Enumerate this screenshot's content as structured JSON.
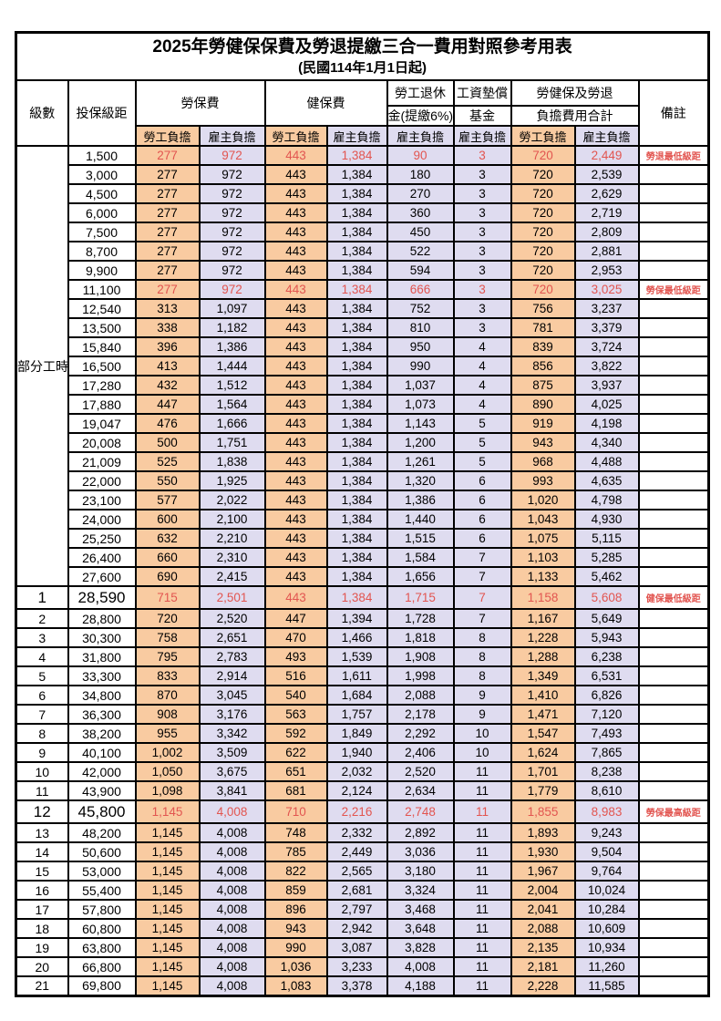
{
  "title": "2025年勞健保保費及勞退提繳三合一費用對照參考用表",
  "subtitle": "(民國114年1月1日起)",
  "header": {
    "level": "級數",
    "bracket": "投保級距",
    "labor_fee": "勞保費",
    "health_fee": "健保費",
    "pension_line1": "勞工退休",
    "pension_line2": "金(提繳6%)",
    "wage_fund_line1": "工資墊償",
    "wage_fund_line2": "基金",
    "total_line1": "勞健保及勞退",
    "total_line2": "負擔費用合計",
    "remark": "備註",
    "employee_share": "勞工負擔",
    "employer_share": "雇主負擔"
  },
  "part_time_label": "部分工時",
  "colors": {
    "employee_bg": "#F9CBA1",
    "employer_bg": "#DFDCF0",
    "highlight_text": "#E25550",
    "border": "#000000"
  },
  "rows": [
    {
      "level": null,
      "bracket": "1,500",
      "values": [
        "277",
        "972",
        "443",
        "1,384",
        "90",
        "3",
        "720",
        "2,449"
      ],
      "remark": "勞退最低級距",
      "highlight": true,
      "large": false
    },
    {
      "level": null,
      "bracket": "3,000",
      "values": [
        "277",
        "972",
        "443",
        "1,384",
        "180",
        "3",
        "720",
        "2,539"
      ],
      "remark": "",
      "highlight": false,
      "large": false
    },
    {
      "level": null,
      "bracket": "4,500",
      "values": [
        "277",
        "972",
        "443",
        "1,384",
        "270",
        "3",
        "720",
        "2,629"
      ],
      "remark": "",
      "highlight": false,
      "large": false
    },
    {
      "level": null,
      "bracket": "6,000",
      "values": [
        "277",
        "972",
        "443",
        "1,384",
        "360",
        "3",
        "720",
        "2,719"
      ],
      "remark": "",
      "highlight": false,
      "large": false
    },
    {
      "level": null,
      "bracket": "7,500",
      "values": [
        "277",
        "972",
        "443",
        "1,384",
        "450",
        "3",
        "720",
        "2,809"
      ],
      "remark": "",
      "highlight": false,
      "large": false
    },
    {
      "level": null,
      "bracket": "8,700",
      "values": [
        "277",
        "972",
        "443",
        "1,384",
        "522",
        "3",
        "720",
        "2,881"
      ],
      "remark": "",
      "highlight": false,
      "large": false
    },
    {
      "level": null,
      "bracket": "9,900",
      "values": [
        "277",
        "972",
        "443",
        "1,384",
        "594",
        "3",
        "720",
        "2,953"
      ],
      "remark": "",
      "highlight": false,
      "large": false
    },
    {
      "level": null,
      "bracket": "11,100",
      "values": [
        "277",
        "972",
        "443",
        "1,384",
        "666",
        "3",
        "720",
        "3,025"
      ],
      "remark": "勞保最低級距",
      "highlight": true,
      "large": false
    },
    {
      "level": null,
      "bracket": "12,540",
      "values": [
        "313",
        "1,097",
        "443",
        "1,384",
        "752",
        "3",
        "756",
        "3,237"
      ],
      "remark": "",
      "highlight": false,
      "large": false
    },
    {
      "level": null,
      "bracket": "13,500",
      "values": [
        "338",
        "1,182",
        "443",
        "1,384",
        "810",
        "3",
        "781",
        "3,379"
      ],
      "remark": "",
      "highlight": false,
      "large": false
    },
    {
      "level": null,
      "bracket": "15,840",
      "values": [
        "396",
        "1,386",
        "443",
        "1,384",
        "950",
        "4",
        "839",
        "3,724"
      ],
      "remark": "",
      "highlight": false,
      "large": false
    },
    {
      "level": null,
      "bracket": "16,500",
      "values": [
        "413",
        "1,444",
        "443",
        "1,384",
        "990",
        "4",
        "856",
        "3,822"
      ],
      "remark": "",
      "highlight": false,
      "large": false
    },
    {
      "level": null,
      "bracket": "17,280",
      "values": [
        "432",
        "1,512",
        "443",
        "1,384",
        "1,037",
        "4",
        "875",
        "3,937"
      ],
      "remark": "",
      "highlight": false,
      "large": false
    },
    {
      "level": null,
      "bracket": "17,880",
      "values": [
        "447",
        "1,564",
        "443",
        "1,384",
        "1,073",
        "4",
        "890",
        "4,025"
      ],
      "remark": "",
      "highlight": false,
      "large": false
    },
    {
      "level": null,
      "bracket": "19,047",
      "values": [
        "476",
        "1,666",
        "443",
        "1,384",
        "1,143",
        "5",
        "919",
        "4,198"
      ],
      "remark": "",
      "highlight": false,
      "large": false
    },
    {
      "level": null,
      "bracket": "20,008",
      "values": [
        "500",
        "1,751",
        "443",
        "1,384",
        "1,200",
        "5",
        "943",
        "4,340"
      ],
      "remark": "",
      "highlight": false,
      "large": false
    },
    {
      "level": null,
      "bracket": "21,009",
      "values": [
        "525",
        "1,838",
        "443",
        "1,384",
        "1,261",
        "5",
        "968",
        "4,488"
      ],
      "remark": "",
      "highlight": false,
      "large": false
    },
    {
      "level": null,
      "bracket": "22,000",
      "values": [
        "550",
        "1,925",
        "443",
        "1,384",
        "1,320",
        "6",
        "993",
        "4,635"
      ],
      "remark": "",
      "highlight": false,
      "large": false
    },
    {
      "level": null,
      "bracket": "23,100",
      "values": [
        "577",
        "2,022",
        "443",
        "1,384",
        "1,386",
        "6",
        "1,020",
        "4,798"
      ],
      "remark": "",
      "highlight": false,
      "large": false
    },
    {
      "level": null,
      "bracket": "24,000",
      "values": [
        "600",
        "2,100",
        "443",
        "1,384",
        "1,440",
        "6",
        "1,043",
        "4,930"
      ],
      "remark": "",
      "highlight": false,
      "large": false
    },
    {
      "level": null,
      "bracket": "25,250",
      "values": [
        "632",
        "2,210",
        "443",
        "1,384",
        "1,515",
        "6",
        "1,075",
        "5,115"
      ],
      "remark": "",
      "highlight": false,
      "large": false
    },
    {
      "level": null,
      "bracket": "26,400",
      "values": [
        "660",
        "2,310",
        "443",
        "1,384",
        "1,584",
        "7",
        "1,103",
        "5,285"
      ],
      "remark": "",
      "highlight": false,
      "large": false
    },
    {
      "level": null,
      "bracket": "27,600",
      "values": [
        "690",
        "2,415",
        "443",
        "1,384",
        "1,656",
        "7",
        "1,133",
        "5,462"
      ],
      "remark": "",
      "highlight": false,
      "large": false
    },
    {
      "level": "1",
      "bracket": "28,590",
      "values": [
        "715",
        "2,501",
        "443",
        "1,384",
        "1,715",
        "7",
        "1,158",
        "5,608"
      ],
      "remark": "健保最低級距",
      "highlight": true,
      "large": true
    },
    {
      "level": "2",
      "bracket": "28,800",
      "values": [
        "720",
        "2,520",
        "447",
        "1,394",
        "1,728",
        "7",
        "1,167",
        "5,649"
      ],
      "remark": "",
      "highlight": false,
      "large": false
    },
    {
      "level": "3",
      "bracket": "30,300",
      "values": [
        "758",
        "2,651",
        "470",
        "1,466",
        "1,818",
        "8",
        "1,228",
        "5,943"
      ],
      "remark": "",
      "highlight": false,
      "large": false
    },
    {
      "level": "4",
      "bracket": "31,800",
      "values": [
        "795",
        "2,783",
        "493",
        "1,539",
        "1,908",
        "8",
        "1,288",
        "6,238"
      ],
      "remark": "",
      "highlight": false,
      "large": false
    },
    {
      "level": "5",
      "bracket": "33,300",
      "values": [
        "833",
        "2,914",
        "516",
        "1,611",
        "1,998",
        "8",
        "1,349",
        "6,531"
      ],
      "remark": "",
      "highlight": false,
      "large": false
    },
    {
      "level": "6",
      "bracket": "34,800",
      "values": [
        "870",
        "3,045",
        "540",
        "1,684",
        "2,088",
        "9",
        "1,410",
        "6,826"
      ],
      "remark": "",
      "highlight": false,
      "large": false
    },
    {
      "level": "7",
      "bracket": "36,300",
      "values": [
        "908",
        "3,176",
        "563",
        "1,757",
        "2,178",
        "9",
        "1,471",
        "7,120"
      ],
      "remark": "",
      "highlight": false,
      "large": false
    },
    {
      "level": "8",
      "bracket": "38,200",
      "values": [
        "955",
        "3,342",
        "592",
        "1,849",
        "2,292",
        "10",
        "1,547",
        "7,493"
      ],
      "remark": "",
      "highlight": false,
      "large": false
    },
    {
      "level": "9",
      "bracket": "40,100",
      "values": [
        "1,002",
        "3,509",
        "622",
        "1,940",
        "2,406",
        "10",
        "1,624",
        "7,865"
      ],
      "remark": "",
      "highlight": false,
      "large": false
    },
    {
      "level": "10",
      "bracket": "42,000",
      "values": [
        "1,050",
        "3,675",
        "651",
        "2,032",
        "2,520",
        "11",
        "1,701",
        "8,238"
      ],
      "remark": "",
      "highlight": false,
      "large": false
    },
    {
      "level": "11",
      "bracket": "43,900",
      "values": [
        "1,098",
        "3,841",
        "681",
        "2,124",
        "2,634",
        "11",
        "1,779",
        "8,610"
      ],
      "remark": "",
      "highlight": false,
      "large": false
    },
    {
      "level": "12",
      "bracket": "45,800",
      "values": [
        "1,145",
        "4,008",
        "710",
        "2,216",
        "2,748",
        "11",
        "1,855",
        "8,983"
      ],
      "remark": "勞保最高級距",
      "highlight": true,
      "large": true
    },
    {
      "level": "13",
      "bracket": "48,200",
      "values": [
        "1,145",
        "4,008",
        "748",
        "2,332",
        "2,892",
        "11",
        "1,893",
        "9,243"
      ],
      "remark": "",
      "highlight": false,
      "large": false
    },
    {
      "level": "14",
      "bracket": "50,600",
      "values": [
        "1,145",
        "4,008",
        "785",
        "2,449",
        "3,036",
        "11",
        "1,930",
        "9,504"
      ],
      "remark": "",
      "highlight": false,
      "large": false
    },
    {
      "level": "15",
      "bracket": "53,000",
      "values": [
        "1,145",
        "4,008",
        "822",
        "2,565",
        "3,180",
        "11",
        "1,967",
        "9,764"
      ],
      "remark": "",
      "highlight": false,
      "large": false
    },
    {
      "level": "16",
      "bracket": "55,400",
      "values": [
        "1,145",
        "4,008",
        "859",
        "2,681",
        "3,324",
        "11",
        "2,004",
        "10,024"
      ],
      "remark": "",
      "highlight": false,
      "large": false
    },
    {
      "level": "17",
      "bracket": "57,800",
      "values": [
        "1,145",
        "4,008",
        "896",
        "2,797",
        "3,468",
        "11",
        "2,041",
        "10,284"
      ],
      "remark": "",
      "highlight": false,
      "large": false
    },
    {
      "level": "18",
      "bracket": "60,800",
      "values": [
        "1,145",
        "4,008",
        "943",
        "2,942",
        "3,648",
        "11",
        "2,088",
        "10,609"
      ],
      "remark": "",
      "highlight": false,
      "large": false
    },
    {
      "level": "19",
      "bracket": "63,800",
      "values": [
        "1,145",
        "4,008",
        "990",
        "3,087",
        "3,828",
        "11",
        "2,135",
        "10,934"
      ],
      "remark": "",
      "highlight": false,
      "large": false
    },
    {
      "level": "20",
      "bracket": "66,800",
      "values": [
        "1,145",
        "4,008",
        "1,036",
        "3,233",
        "4,008",
        "11",
        "2,181",
        "11,260"
      ],
      "remark": "",
      "highlight": false,
      "large": false
    },
    {
      "level": "21",
      "bracket": "69,800",
      "values": [
        "1,145",
        "4,008",
        "1,083",
        "3,378",
        "4,188",
        "11",
        "2,228",
        "11,585"
      ],
      "remark": "",
      "highlight": false,
      "large": false
    }
  ]
}
